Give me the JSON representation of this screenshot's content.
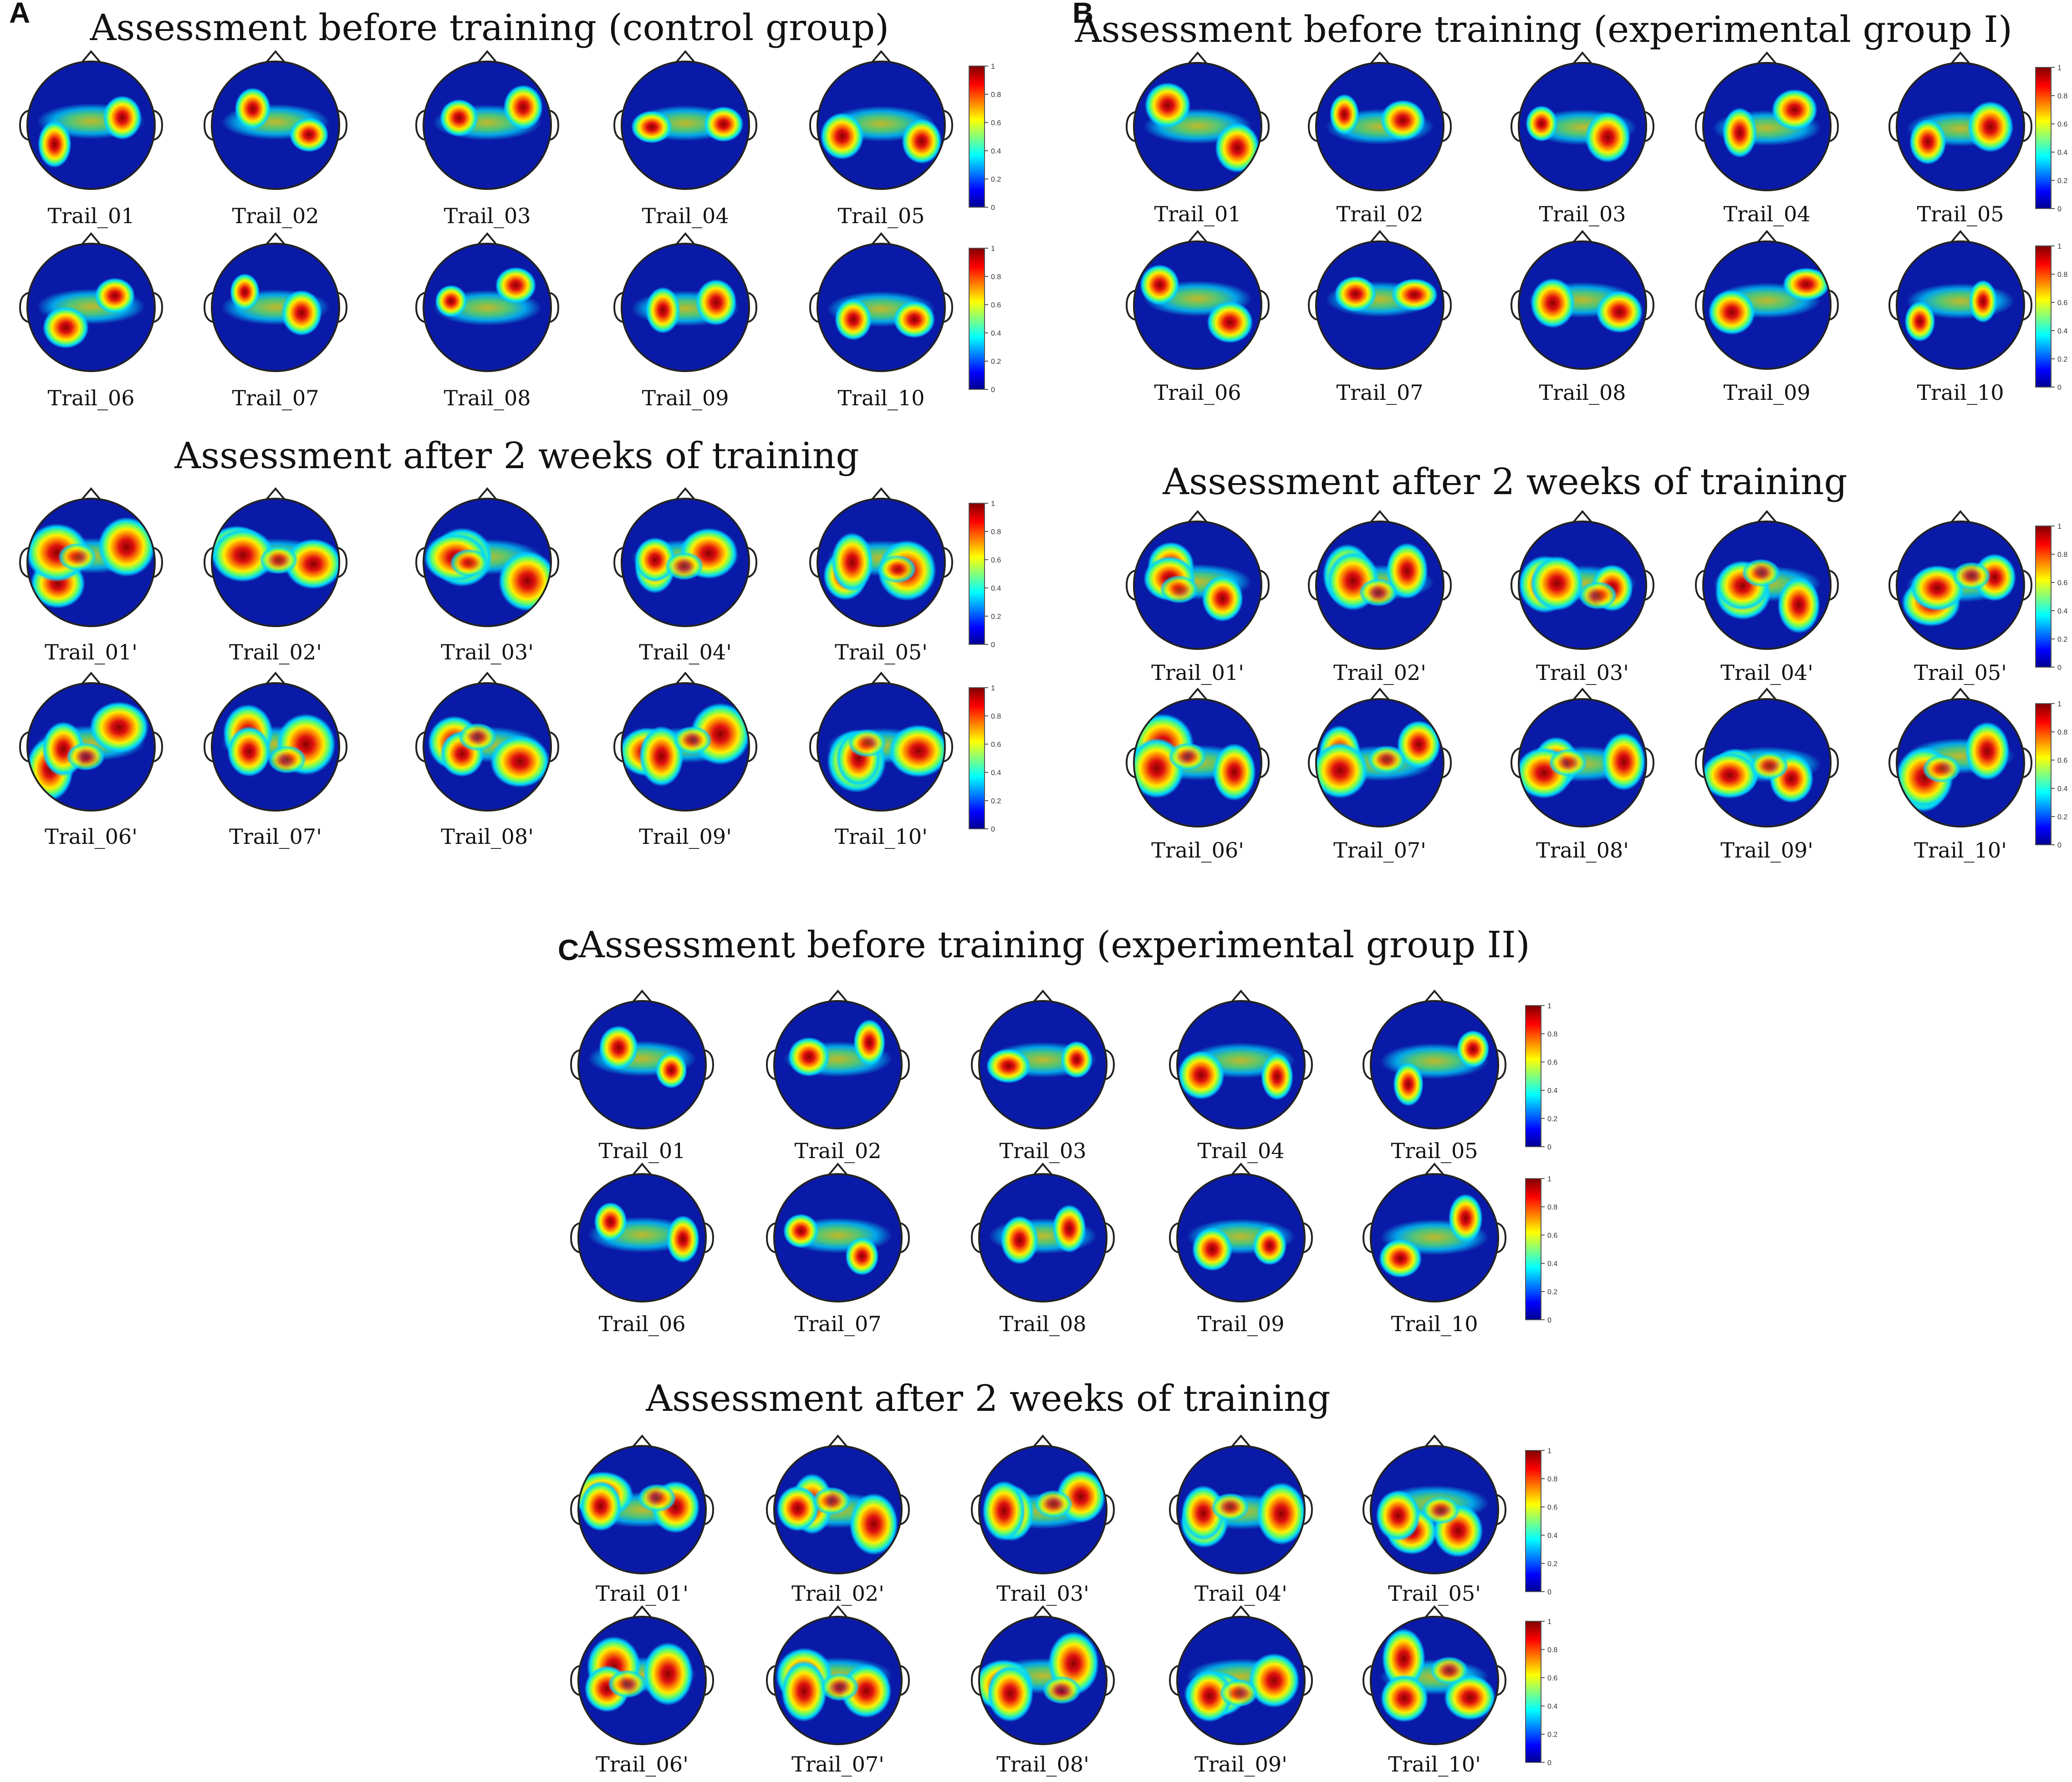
{
  "panels": [
    {
      "letter": "A",
      "sections": [
        {
          "title": "Assessment before training (control group)",
          "rows": [
            [
              "Trail_01",
              "Trail_02",
              "Trail_03",
              "Trail_04",
              "Trail_05"
            ],
            [
              "Trail_06",
              "Trail_07",
              "Trail_08",
              "Trail_09",
              "Trail_10"
            ]
          ]
        },
        {
          "title": "Assessment after 2 weeks of training",
          "rows": [
            [
              "Trail_01'",
              "Trail_02'",
              "Trail_03'",
              "Trail_04'",
              "Trail_05'"
            ],
            [
              "Trail_06'",
              "Trail_07'",
              "Trail_08'",
              "Trail_09'",
              "Trail_10'"
            ]
          ]
        }
      ]
    },
    {
      "letter": "B",
      "sections": [
        {
          "title": "Assessment before training (experimental group I)",
          "rows": [
            [
              "Trail_01",
              "Trail_02",
              "Trail_03",
              "Trail_04",
              "Trail_05"
            ],
            [
              "Trail_06",
              "Trail_07",
              "Trail_08",
              "Trail_09",
              "Trail_10"
            ]
          ]
        },
        {
          "title": "Assessment after 2 weeks of training",
          "rows": [
            [
              "Trail_01'",
              "Trail_02'",
              "Trail_03'",
              "Trail_04'",
              "Trail_05'"
            ],
            [
              "Trail_06'",
              "Trail_07'",
              "Trail_08'",
              "Trail_09'",
              "Trail_10'"
            ]
          ]
        }
      ]
    },
    {
      "letter": "C",
      "sections": [
        {
          "title": "Assessment before training (experimental group II)",
          "rows": [
            [
              "Trail_01",
              "Trail_02",
              "Trail_03",
              "Trail_04",
              "Trail_05"
            ],
            [
              "Trail_06",
              "Trail_07",
              "Trail_08",
              "Trail_09",
              "Trail_10"
            ]
          ]
        },
        {
          "title": "Assessment after 2 weeks of training",
          "rows": [
            [
              "Trail_01'",
              "Trail_02'",
              "Trail_03'",
              "Trail_04'",
              "Trail_05'"
            ],
            [
              "Trail_06'",
              "Trail_07'",
              "Trail_08'",
              "Trail_09'",
              "Trail_10'"
            ]
          ]
        }
      ]
    }
  ],
  "colorbar": {
    "ticks": [
      "0",
      "0.2",
      "0.4",
      "0.6",
      "0.8",
      "1"
    ],
    "colormap": [
      "#00008f",
      "#0000ff",
      "#00ffff",
      "#ffff00",
      "#ff0000",
      "#800000"
    ]
  },
  "colors": {
    "map_background": "#0a1aa8",
    "outline": "#222222"
  }
}
